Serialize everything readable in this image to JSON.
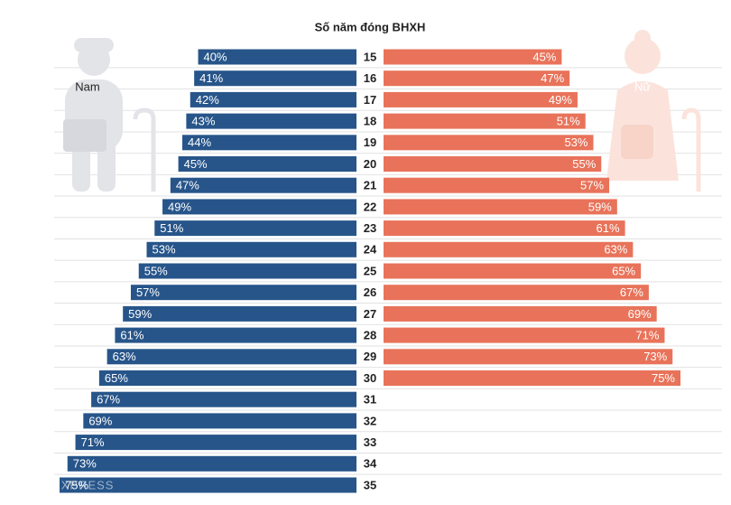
{
  "chart_data": {
    "type": "butterfly",
    "title": "Số năm đóng BHXH",
    "categories": [
      "15",
      "16",
      "17",
      "18",
      "19",
      "20",
      "21",
      "22",
      "23",
      "24",
      "25",
      "26",
      "27",
      "28",
      "29",
      "30",
      "31",
      "32",
      "33",
      "34",
      "35"
    ],
    "xlim": [
      0,
      75
    ],
    "series": [
      {
        "name": "Nam",
        "color": "#27558a",
        "values": [
          40,
          41,
          42,
          43,
          44,
          45,
          47,
          49,
          51,
          53,
          55,
          57,
          59,
          61,
          63,
          65,
          67,
          69,
          71,
          73,
          75
        ],
        "value_labels": [
          "40%",
          "41%",
          "42%",
          "43%",
          "44%",
          "45%",
          "47%",
          "49%",
          "51%",
          "53%",
          "55%",
          "57%",
          "59%",
          "61%",
          "63%",
          "65%",
          "67%",
          "69%",
          "71%",
          "73%",
          "75%"
        ]
      },
      {
        "name": "Nữ",
        "color": "#e8735a",
        "values": [
          45,
          47,
          49,
          51,
          53,
          55,
          57,
          59,
          61,
          63,
          65,
          67,
          69,
          71,
          73,
          75,
          null,
          null,
          null,
          null,
          null
        ],
        "value_labels": [
          "45%",
          "47%",
          "49%",
          "51%",
          "53%",
          "55%",
          "57%",
          "59%",
          "61%",
          "63%",
          "65%",
          "67%",
          "69%",
          "71%",
          "73%",
          "75%",
          null,
          null,
          null,
          null,
          null
        ]
      }
    ],
    "watermark": "VNEXPRESS"
  }
}
